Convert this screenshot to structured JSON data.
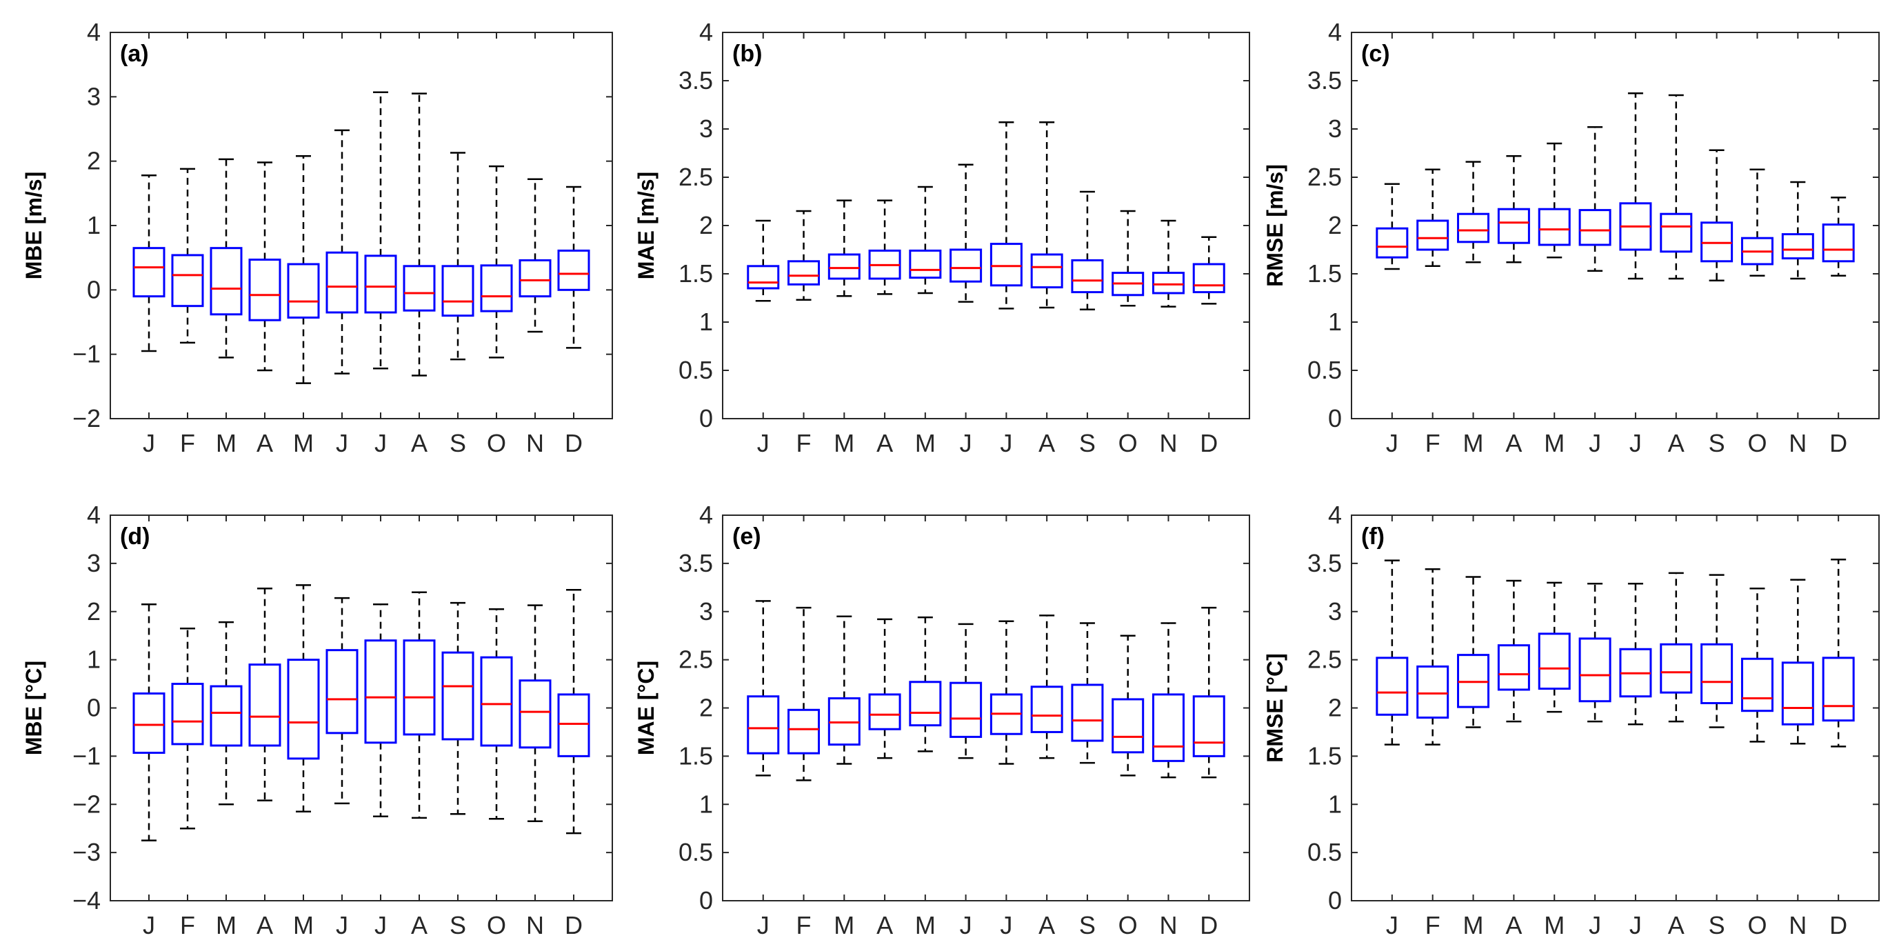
{
  "chart_data": [
    {
      "id": "a",
      "type": "box",
      "panel_label": "(a)",
      "ylabel": "MBE [m/s]",
      "ylim": [
        -2,
        4
      ],
      "yticks": [
        -2,
        -1,
        0,
        1,
        2,
        3,
        4
      ],
      "ytick_labels": [
        "−2",
        "−1",
        "0",
        "1",
        "2",
        "3",
        "4"
      ],
      "categories": [
        "J",
        "F",
        "M",
        "A",
        "M",
        "J",
        "J",
        "A",
        "S",
        "O",
        "N",
        "D"
      ],
      "boxes": [
        {
          "min": -0.95,
          "q1": -0.1,
          "median": 0.35,
          "q3": 0.65,
          "max": 1.78
        },
        {
          "min": -0.82,
          "q1": -0.25,
          "median": 0.23,
          "q3": 0.54,
          "max": 1.88
        },
        {
          "min": -1.05,
          "q1": -0.38,
          "median": 0.02,
          "q3": 0.65,
          "max": 2.03
        },
        {
          "min": -1.25,
          "q1": -0.47,
          "median": -0.08,
          "q3": 0.47,
          "max": 1.98
        },
        {
          "min": -1.45,
          "q1": -0.43,
          "median": -0.18,
          "q3": 0.4,
          "max": 2.08
        },
        {
          "min": -1.3,
          "q1": -0.35,
          "median": 0.05,
          "q3": 0.58,
          "max": 2.48
        },
        {
          "min": -1.22,
          "q1": -0.35,
          "median": 0.05,
          "q3": 0.53,
          "max": 3.07
        },
        {
          "min": -1.33,
          "q1": -0.32,
          "median": -0.05,
          "q3": 0.37,
          "max": 3.05
        },
        {
          "min": -1.08,
          "q1": -0.4,
          "median": -0.18,
          "q3": 0.37,
          "max": 2.13
        },
        {
          "min": -1.05,
          "q1": -0.33,
          "median": -0.1,
          "q3": 0.38,
          "max": 1.92
        },
        {
          "min": -0.65,
          "q1": -0.1,
          "median": 0.15,
          "q3": 0.46,
          "max": 1.72
        },
        {
          "min": -0.9,
          "q1": 0.0,
          "median": 0.25,
          "q3": 0.61,
          "max": 1.6
        }
      ]
    },
    {
      "id": "b",
      "type": "box",
      "panel_label": "(b)",
      "ylabel": "MAE [m/s]",
      "ylim": [
        0,
        4
      ],
      "yticks": [
        0,
        0.5,
        1,
        1.5,
        2,
        2.5,
        3,
        3.5,
        4
      ],
      "ytick_labels": [
        "0",
        "0.5",
        "1",
        "1.5",
        "2",
        "2.5",
        "3",
        "3.5",
        "4"
      ],
      "categories": [
        "J",
        "F",
        "M",
        "A",
        "M",
        "J",
        "J",
        "A",
        "S",
        "O",
        "N",
        "D"
      ],
      "boxes": [
        {
          "min": 1.22,
          "q1": 1.35,
          "median": 1.41,
          "q3": 1.58,
          "max": 2.05
        },
        {
          "min": 1.23,
          "q1": 1.39,
          "median": 1.48,
          "q3": 1.63,
          "max": 2.15
        },
        {
          "min": 1.27,
          "q1": 1.45,
          "median": 1.56,
          "q3": 1.7,
          "max": 2.26
        },
        {
          "min": 1.29,
          "q1": 1.45,
          "median": 1.59,
          "q3": 1.74,
          "max": 2.26
        },
        {
          "min": 1.3,
          "q1": 1.46,
          "median": 1.54,
          "q3": 1.74,
          "max": 2.4
        },
        {
          "min": 1.21,
          "q1": 1.42,
          "median": 1.56,
          "q3": 1.75,
          "max": 2.63
        },
        {
          "min": 1.14,
          "q1": 1.38,
          "median": 1.58,
          "q3": 1.81,
          "max": 3.07
        },
        {
          "min": 1.15,
          "q1": 1.36,
          "median": 1.57,
          "q3": 1.7,
          "max": 3.07
        },
        {
          "min": 1.13,
          "q1": 1.31,
          "median": 1.43,
          "q3": 1.64,
          "max": 2.35
        },
        {
          "min": 1.17,
          "q1": 1.28,
          "median": 1.4,
          "q3": 1.51,
          "max": 2.15
        },
        {
          "min": 1.16,
          "q1": 1.3,
          "median": 1.39,
          "q3": 1.51,
          "max": 2.05
        },
        {
          "min": 1.19,
          "q1": 1.31,
          "median": 1.38,
          "q3": 1.6,
          "max": 1.88
        }
      ]
    },
    {
      "id": "c",
      "type": "box",
      "panel_label": "(c)",
      "ylabel": "RMSE [m/s]",
      "ylim": [
        0,
        4
      ],
      "yticks": [
        0,
        0.5,
        1,
        1.5,
        2,
        2.5,
        3,
        3.5,
        4
      ],
      "ytick_labels": [
        "0",
        "0.5",
        "1",
        "1.5",
        "2",
        "2.5",
        "3",
        "3.5",
        "4"
      ],
      "categories": [
        "J",
        "F",
        "M",
        "A",
        "M",
        "J",
        "J",
        "A",
        "S",
        "O",
        "N",
        "D"
      ],
      "boxes": [
        {
          "min": 1.55,
          "q1": 1.67,
          "median": 1.78,
          "q3": 1.97,
          "max": 2.43
        },
        {
          "min": 1.58,
          "q1": 1.75,
          "median": 1.87,
          "q3": 2.05,
          "max": 2.58
        },
        {
          "min": 1.62,
          "q1": 1.83,
          "median": 1.95,
          "q3": 2.12,
          "max": 2.66
        },
        {
          "min": 1.62,
          "q1": 1.82,
          "median": 2.03,
          "q3": 2.17,
          "max": 2.72
        },
        {
          "min": 1.67,
          "q1": 1.8,
          "median": 1.96,
          "q3": 2.17,
          "max": 2.85
        },
        {
          "min": 1.53,
          "q1": 1.8,
          "median": 1.95,
          "q3": 2.16,
          "max": 3.02
        },
        {
          "min": 1.45,
          "q1": 1.75,
          "median": 1.99,
          "q3": 2.23,
          "max": 3.37
        },
        {
          "min": 1.45,
          "q1": 1.73,
          "median": 1.99,
          "q3": 2.12,
          "max": 3.35
        },
        {
          "min": 1.43,
          "q1": 1.63,
          "median": 1.82,
          "q3": 2.03,
          "max": 2.78
        },
        {
          "min": 1.48,
          "q1": 1.6,
          "median": 1.73,
          "q3": 1.87,
          "max": 2.58
        },
        {
          "min": 1.45,
          "q1": 1.66,
          "median": 1.75,
          "q3": 1.91,
          "max": 2.45
        },
        {
          "min": 1.48,
          "q1": 1.63,
          "median": 1.75,
          "q3": 2.01,
          "max": 2.29
        }
      ]
    },
    {
      "id": "d",
      "type": "box",
      "panel_label": "(d)",
      "ylabel": "MBE [°C]",
      "ylim": [
        -4,
        4
      ],
      "yticks": [
        -4,
        -3,
        -2,
        -1,
        0,
        1,
        2,
        3,
        4
      ],
      "ytick_labels": [
        "−4",
        "−3",
        "−2",
        "−1",
        "0",
        "1",
        "2",
        "3",
        "4"
      ],
      "categories": [
        "J",
        "F",
        "M",
        "A",
        "M",
        "J",
        "J",
        "A",
        "S",
        "O",
        "N",
        "D"
      ],
      "boxes": [
        {
          "min": -2.75,
          "q1": -0.93,
          "median": -0.35,
          "q3": 0.3,
          "max": 2.15
        },
        {
          "min": -2.5,
          "q1": -0.75,
          "median": -0.28,
          "q3": 0.5,
          "max": 1.65
        },
        {
          "min": -2.0,
          "q1": -0.78,
          "median": -0.1,
          "q3": 0.45,
          "max": 1.78
        },
        {
          "min": -1.92,
          "q1": -0.78,
          "median": -0.18,
          "q3": 0.9,
          "max": 2.48
        },
        {
          "min": -2.15,
          "q1": -1.05,
          "median": -0.3,
          "q3": 1.0,
          "max": 2.55
        },
        {
          "min": -1.98,
          "q1": -0.52,
          "median": 0.18,
          "q3": 1.2,
          "max": 2.28
        },
        {
          "min": -2.25,
          "q1": -0.72,
          "median": 0.22,
          "q3": 1.4,
          "max": 2.15
        },
        {
          "min": -2.28,
          "q1": -0.55,
          "median": 0.22,
          "q3": 1.4,
          "max": 2.4
        },
        {
          "min": -2.2,
          "q1": -0.65,
          "median": 0.45,
          "q3": 1.15,
          "max": 2.18
        },
        {
          "min": -2.3,
          "q1": -0.78,
          "median": 0.08,
          "q3": 1.05,
          "max": 2.05
        },
        {
          "min": -2.35,
          "q1": -0.82,
          "median": -0.08,
          "q3": 0.57,
          "max": 2.13
        },
        {
          "min": -2.6,
          "q1": -1.0,
          "median": -0.33,
          "q3": 0.28,
          "max": 2.45
        }
      ]
    },
    {
      "id": "e",
      "type": "box",
      "panel_label": "(e)",
      "ylabel": "MAE [°C]",
      "ylim": [
        0,
        4
      ],
      "yticks": [
        0,
        0.5,
        1,
        1.5,
        2,
        2.5,
        3,
        3.5,
        4
      ],
      "ytick_labels": [
        "0",
        "0.5",
        "1",
        "1.5",
        "2",
        "2.5",
        "3",
        "3.5",
        "4"
      ],
      "categories": [
        "J",
        "F",
        "M",
        "A",
        "M",
        "J",
        "J",
        "A",
        "S",
        "O",
        "N",
        "D"
      ],
      "boxes": [
        {
          "min": 1.3,
          "q1": 1.53,
          "median": 1.79,
          "q3": 2.12,
          "max": 3.11
        },
        {
          "min": 1.25,
          "q1": 1.53,
          "median": 1.78,
          "q3": 1.98,
          "max": 3.04
        },
        {
          "min": 1.42,
          "q1": 1.62,
          "median": 1.85,
          "q3": 2.1,
          "max": 2.95
        },
        {
          "min": 1.48,
          "q1": 1.78,
          "median": 1.93,
          "q3": 2.14,
          "max": 2.92
        },
        {
          "min": 1.55,
          "q1": 1.82,
          "median": 1.95,
          "q3": 2.27,
          "max": 2.94
        },
        {
          "min": 1.48,
          "q1": 1.7,
          "median": 1.89,
          "q3": 2.26,
          "max": 2.87
        },
        {
          "min": 1.42,
          "q1": 1.73,
          "median": 1.94,
          "q3": 2.14,
          "max": 2.9
        },
        {
          "min": 1.48,
          "q1": 1.75,
          "median": 1.92,
          "q3": 2.22,
          "max": 2.96
        },
        {
          "min": 1.43,
          "q1": 1.66,
          "median": 1.87,
          "q3": 2.24,
          "max": 2.88
        },
        {
          "min": 1.3,
          "q1": 1.54,
          "median": 1.7,
          "q3": 2.09,
          "max": 2.75
        },
        {
          "min": 1.28,
          "q1": 1.45,
          "median": 1.6,
          "q3": 2.14,
          "max": 2.88
        },
        {
          "min": 1.28,
          "q1": 1.5,
          "median": 1.64,
          "q3": 2.12,
          "max": 3.04
        }
      ]
    },
    {
      "id": "f",
      "type": "box",
      "panel_label": "(f)",
      "ylabel": "RMSE [°C]",
      "ylim": [
        0,
        4
      ],
      "yticks": [
        0,
        0.5,
        1,
        1.5,
        2,
        2.5,
        3,
        3.5,
        4
      ],
      "ytick_labels": [
        "0",
        "0.5",
        "1",
        "1.5",
        "2",
        "2.5",
        "3",
        "3.5",
        "4"
      ],
      "categories": [
        "J",
        "F",
        "M",
        "A",
        "M",
        "J",
        "J",
        "A",
        "S",
        "O",
        "N",
        "D"
      ],
      "boxes": [
        {
          "min": 1.62,
          "q1": 1.93,
          "median": 2.16,
          "q3": 2.52,
          "max": 3.53
        },
        {
          "min": 1.62,
          "q1": 1.9,
          "median": 2.15,
          "q3": 2.43,
          "max": 3.44
        },
        {
          "min": 1.8,
          "q1": 2.01,
          "median": 2.27,
          "q3": 2.55,
          "max": 3.36
        },
        {
          "min": 1.86,
          "q1": 2.19,
          "median": 2.35,
          "q3": 2.65,
          "max": 3.32
        },
        {
          "min": 1.96,
          "q1": 2.2,
          "median": 2.41,
          "q3": 2.77,
          "max": 3.3
        },
        {
          "min": 1.86,
          "q1": 2.07,
          "median": 2.34,
          "q3": 2.72,
          "max": 3.29
        },
        {
          "min": 1.83,
          "q1": 2.12,
          "median": 2.36,
          "q3": 2.61,
          "max": 3.29
        },
        {
          "min": 1.86,
          "q1": 2.16,
          "median": 2.37,
          "q3": 2.66,
          "max": 3.4
        },
        {
          "min": 1.8,
          "q1": 2.05,
          "median": 2.27,
          "q3": 2.66,
          "max": 3.38
        },
        {
          "min": 1.65,
          "q1": 1.97,
          "median": 2.1,
          "q3": 2.51,
          "max": 3.24
        },
        {
          "min": 1.63,
          "q1": 1.83,
          "median": 2.0,
          "q3": 2.47,
          "max": 3.33
        },
        {
          "min": 1.6,
          "q1": 1.87,
          "median": 2.02,
          "q3": 2.52,
          "max": 3.54
        }
      ]
    }
  ]
}
